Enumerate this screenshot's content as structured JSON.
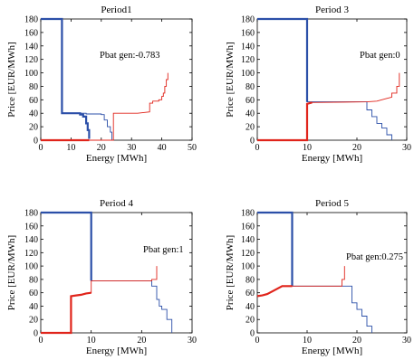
{
  "chart_data": [
    {
      "type": "line",
      "title": "Period1",
      "xlabel": "Energy [MWh]",
      "ylabel": "Price [EUR/MWh]",
      "annotation": "Pbat gen:-0.783",
      "xlim": [
        0,
        50
      ],
      "ylim": [
        0,
        180
      ],
      "xticks": [
        0,
        10,
        20,
        30,
        40,
        50
      ],
      "yticks": [
        0,
        20,
        40,
        60,
        80,
        100,
        120,
        140,
        160,
        180
      ],
      "series": [
        {
          "role": "demand",
          "color": "#2b4fa8",
          "width": 0.9,
          "points": [
            [
              0,
              180
            ],
            [
              7,
              180
            ],
            [
              7,
              40
            ],
            [
              15,
              40
            ],
            [
              15,
              39
            ],
            [
              20,
              39
            ],
            [
              20,
              38
            ],
            [
              21,
              38
            ],
            [
              21,
              30
            ],
            [
              22,
              30
            ],
            [
              22,
              20
            ],
            [
              23,
              20
            ],
            [
              23,
              12
            ],
            [
              23.5,
              12
            ],
            [
              23.5,
              0
            ]
          ]
        },
        {
          "role": "demand-cleared",
          "color": "#2b4fa8",
          "width": 2.2,
          "points": [
            [
              0,
              180
            ],
            [
              7,
              180
            ],
            [
              7,
              40
            ],
            [
              13,
              40
            ],
            [
              13,
              38
            ],
            [
              14,
              38
            ],
            [
              14,
              35
            ],
            [
              15,
              35
            ],
            [
              15,
              25
            ],
            [
              15.5,
              25
            ],
            [
              15.5,
              15
            ],
            [
              16,
              15
            ],
            [
              16,
              2
            ]
          ]
        },
        {
          "role": "supply",
          "color": "#e0241b",
          "width": 0.9,
          "points": [
            [
              0,
              0
            ],
            [
              24,
              0
            ],
            [
              24,
              40
            ],
            [
              32,
              40
            ],
            [
              36,
              42
            ],
            [
              36,
              55
            ],
            [
              37,
              55
            ],
            [
              37,
              58
            ],
            [
              39,
              58
            ],
            [
              39,
              60
            ],
            [
              40,
              60
            ],
            [
              40,
              65
            ],
            [
              40.5,
              65
            ],
            [
              40.5,
              70
            ],
            [
              41,
              70
            ],
            [
              41,
              80
            ],
            [
              41.5,
              80
            ],
            [
              41.5,
              90
            ],
            [
              42,
              90
            ],
            [
              42,
              100
            ]
          ]
        },
        {
          "role": "supply-cleared",
          "color": "#e0241b",
          "width": 2.2,
          "points": [
            [
              0,
              0
            ],
            [
              16,
              0
            ]
          ]
        }
      ]
    },
    {
      "type": "line",
      "title": "Period 3",
      "xlabel": "Energy [MWh]",
      "ylabel": "Price [EUR/MWh]",
      "annotation": "Pbat gen:0",
      "xlim": [
        0,
        30
      ],
      "ylim": [
        0,
        180
      ],
      "xticks": [
        0,
        10,
        20,
        30
      ],
      "yticks": [
        0,
        20,
        40,
        60,
        80,
        100,
        120,
        140,
        160,
        180
      ],
      "series": [
        {
          "role": "demand",
          "color": "#2b4fa8",
          "width": 0.9,
          "points": [
            [
              0,
              180
            ],
            [
              10,
              180
            ],
            [
              10,
              57
            ],
            [
              22,
              57
            ],
            [
              22,
              45
            ],
            [
              23,
              45
            ],
            [
              23,
              35
            ],
            [
              24,
              35
            ],
            [
              24,
              25
            ],
            [
              25,
              25
            ],
            [
              25,
              18
            ],
            [
              26,
              18
            ],
            [
              26,
              8
            ],
            [
              27,
              8
            ],
            [
              27,
              0
            ]
          ]
        },
        {
          "role": "demand-cleared",
          "color": "#2b4fa8",
          "width": 2.2,
          "points": [
            [
              0,
              180
            ],
            [
              10,
              180
            ],
            [
              10,
              57
            ]
          ]
        },
        {
          "role": "supply",
          "color": "#e0241b",
          "width": 0.9,
          "points": [
            [
              0,
              0
            ],
            [
              10,
              0
            ],
            [
              10,
              54
            ],
            [
              11,
              56
            ],
            [
              22,
              57
            ],
            [
              24,
              58
            ],
            [
              26,
              62
            ],
            [
              27,
              64
            ],
            [
              27,
              70
            ],
            [
              28,
              70
            ],
            [
              28,
              80
            ],
            [
              28.5,
              80
            ],
            [
              28.5,
              100
            ]
          ]
        },
        {
          "role": "supply-cleared",
          "color": "#e0241b",
          "width": 2.2,
          "points": [
            [
              0,
              0
            ],
            [
              10,
              0
            ],
            [
              10,
              54
            ],
            [
              11,
              56
            ]
          ]
        }
      ]
    },
    {
      "type": "line",
      "title": "Period 4",
      "xlabel": "Energy [MWh]",
      "ylabel": "Price [EUR/MWh]",
      "annotation": "Pbat gen:1",
      "xlim": [
        0,
        30
      ],
      "ylim": [
        0,
        180
      ],
      "xticks": [
        0,
        10,
        20,
        30
      ],
      "yticks": [
        0,
        20,
        40,
        60,
        80,
        100,
        120,
        140,
        160,
        180
      ],
      "series": [
        {
          "role": "demand",
          "color": "#2b4fa8",
          "width": 0.9,
          "points": [
            [
              0,
              180
            ],
            [
              10,
              180
            ],
            [
              10,
              78
            ],
            [
              22,
              78
            ],
            [
              22,
              70
            ],
            [
              23,
              70
            ],
            [
              23,
              50
            ],
            [
              23.5,
              50
            ],
            [
              23.5,
              40
            ],
            [
              24,
              40
            ],
            [
              24,
              35
            ],
            [
              25,
              35
            ],
            [
              25,
              20
            ],
            [
              26,
              20
            ],
            [
              26,
              0
            ]
          ]
        },
        {
          "role": "demand-cleared",
          "color": "#2b4fa8",
          "width": 2.2,
          "points": [
            [
              0,
              180
            ],
            [
              10,
              180
            ],
            [
              10,
              78
            ]
          ]
        },
        {
          "role": "supply",
          "color": "#e0241b",
          "width": 0.9,
          "points": [
            [
              0,
              0
            ],
            [
              6,
              0
            ],
            [
              6,
              55
            ],
            [
              7,
              56
            ],
            [
              8,
              57
            ],
            [
              9,
              59
            ],
            [
              10,
              60
            ],
            [
              10,
              78
            ],
            [
              22,
              78
            ],
            [
              22,
              80
            ],
            [
              23,
              80
            ],
            [
              23,
              100
            ]
          ]
        },
        {
          "role": "supply-cleared",
          "color": "#e0241b",
          "width": 2.2,
          "points": [
            [
              0,
              0
            ],
            [
              6,
              0
            ],
            [
              6,
              55
            ],
            [
              7,
              56
            ],
            [
              8,
              57
            ],
            [
              9,
              59
            ],
            [
              10,
              60
            ]
          ]
        }
      ]
    },
    {
      "type": "line",
      "title": "Period 5",
      "xlabel": "Energy [MWh]",
      "ylabel": "Price [EUR/MWh]",
      "annotation": "Pbat gen:0.275",
      "xlim": [
        0,
        30
      ],
      "ylim": [
        0,
        180
      ],
      "xticks": [
        0,
        10,
        20,
        30
      ],
      "yticks": [
        0,
        20,
        40,
        60,
        80,
        100,
        120,
        140,
        160,
        180
      ],
      "series": [
        {
          "role": "demand",
          "color": "#2b4fa8",
          "width": 0.9,
          "points": [
            [
              0,
              180
            ],
            [
              7,
              180
            ],
            [
              7,
              70
            ],
            [
              19,
              70
            ],
            [
              19,
              45
            ],
            [
              20,
              45
            ],
            [
              20,
              35
            ],
            [
              21,
              35
            ],
            [
              21,
              25
            ],
            [
              22,
              25
            ],
            [
              22,
              10
            ],
            [
              23,
              10
            ],
            [
              23,
              0
            ]
          ]
        },
        {
          "role": "demand-cleared",
          "color": "#2b4fa8",
          "width": 2.2,
          "points": [
            [
              0,
              180
            ],
            [
              7,
              180
            ],
            [
              7,
              70
            ]
          ]
        },
        {
          "role": "supply",
          "color": "#e0241b",
          "width": 0.9,
          "points": [
            [
              0,
              55
            ],
            [
              1,
              56
            ],
            [
              2,
              58
            ],
            [
              3,
              62
            ],
            [
              5,
              70
            ],
            [
              17,
              70
            ],
            [
              17,
              80
            ],
            [
              17.5,
              80
            ],
            [
              17.5,
              100
            ]
          ]
        },
        {
          "role": "supply-cleared",
          "color": "#e0241b",
          "width": 2.2,
          "points": [
            [
              0,
              55
            ],
            [
              1,
              56
            ],
            [
              2,
              58
            ],
            [
              3,
              62
            ],
            [
              5,
              70
            ],
            [
              7,
              70
            ]
          ]
        }
      ]
    }
  ]
}
